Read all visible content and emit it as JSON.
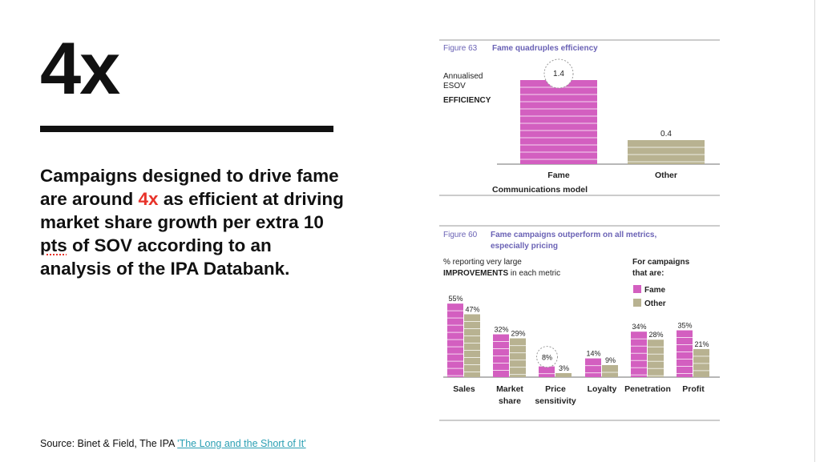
{
  "slide": {
    "stat": "4x",
    "headline_pre": "Campaigns designed to drive fame are around",
    "headline_accent": "4x",
    "headline_mid": "as efficient at driving market share growth per extra 10",
    "headline_spell": "pts",
    "headline_post": "of SOV according to an analysis of the IPA Databank.",
    "source_prefix": "Source: Binet & Field, The IPA",
    "source_link": "'The Long and the Short of It'",
    "colors": {
      "accent": "#e8332a",
      "link": "#2a9fb3",
      "fame": "#d35fc0",
      "other": "#b8b291",
      "figure_title": "#6a62b5"
    }
  },
  "chart_data": [
    {
      "type": "bar",
      "figure": "Figure 63",
      "title": "Fame quadruples efficiency",
      "ylabel_lines": [
        "Annualised",
        "ESOV"
      ],
      "ylabel_bold": "EFFICIENCY",
      "categories": [
        "Fame",
        "Other"
      ],
      "values": [
        1.4,
        0.4
      ],
      "value_labels": [
        "1.4",
        "0.4"
      ],
      "highlight_index": 0,
      "xlabel": "Communications model",
      "ylim": [
        0,
        1.6
      ],
      "grid": false
    },
    {
      "type": "bar",
      "figure": "Figure 60",
      "title_lines": [
        "Fame campaigns outperform on all metrics,",
        "especially pricing"
      ],
      "ylabel_line1": "% reporting very large",
      "ylabel_bold": "IMPROVEMENTS",
      "ylabel_rest": " in each metric",
      "legend_title_lines": [
        "For campaigns",
        "that are:"
      ],
      "legend_position": "top-right",
      "categories": [
        [
          "Sales"
        ],
        [
          "Market",
          "share"
        ],
        [
          "Price",
          "sensitivity"
        ],
        [
          "Loyalty"
        ],
        [
          "Penetration"
        ],
        [
          "Profit"
        ]
      ],
      "series": [
        {
          "name": "Fame",
          "values": [
            55,
            32,
            8,
            14,
            34,
            35
          ],
          "labels": [
            "55%",
            "32%",
            "8%",
            "14%",
            "34%",
            "35%"
          ]
        },
        {
          "name": "Other",
          "values": [
            47,
            29,
            3,
            9,
            28,
            21
          ],
          "labels": [
            "47%",
            "29%",
            "3%",
            "9%",
            "28%",
            "21%"
          ]
        }
      ],
      "highlight_index": 2,
      "ylim": [
        0,
        60
      ],
      "grid": false
    }
  ]
}
